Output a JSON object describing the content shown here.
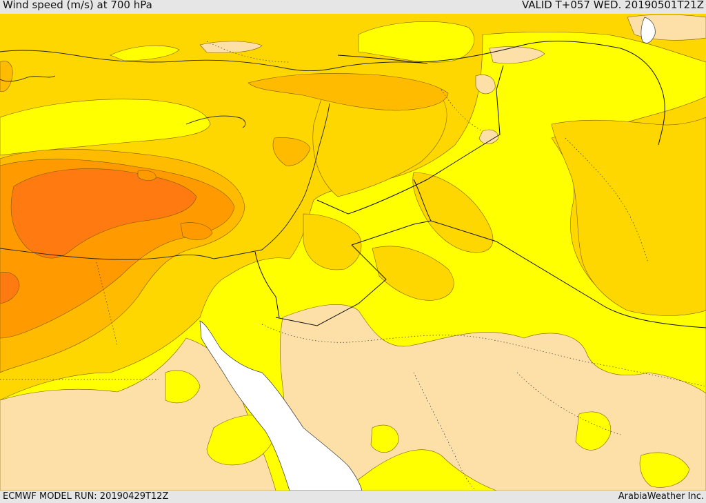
{
  "header": {
    "title": "Wind speed (m/s) at 700 hPa",
    "valid": "VALID T+057 WED. 20190501T21Z"
  },
  "footer": {
    "model_run": "ECMWF MODEL RUN: 20190429T12Z",
    "credit": "ArabiaWeather Inc."
  },
  "legend_colors": {
    "level_1": "#fde0a8",
    "level_2": "#ffff00",
    "level_3": "#ffd700",
    "level_4": "#ffbb00",
    "level_5": "#ff9a00",
    "level_6": "#ff7a10",
    "water_masked": "#ffffff"
  }
}
